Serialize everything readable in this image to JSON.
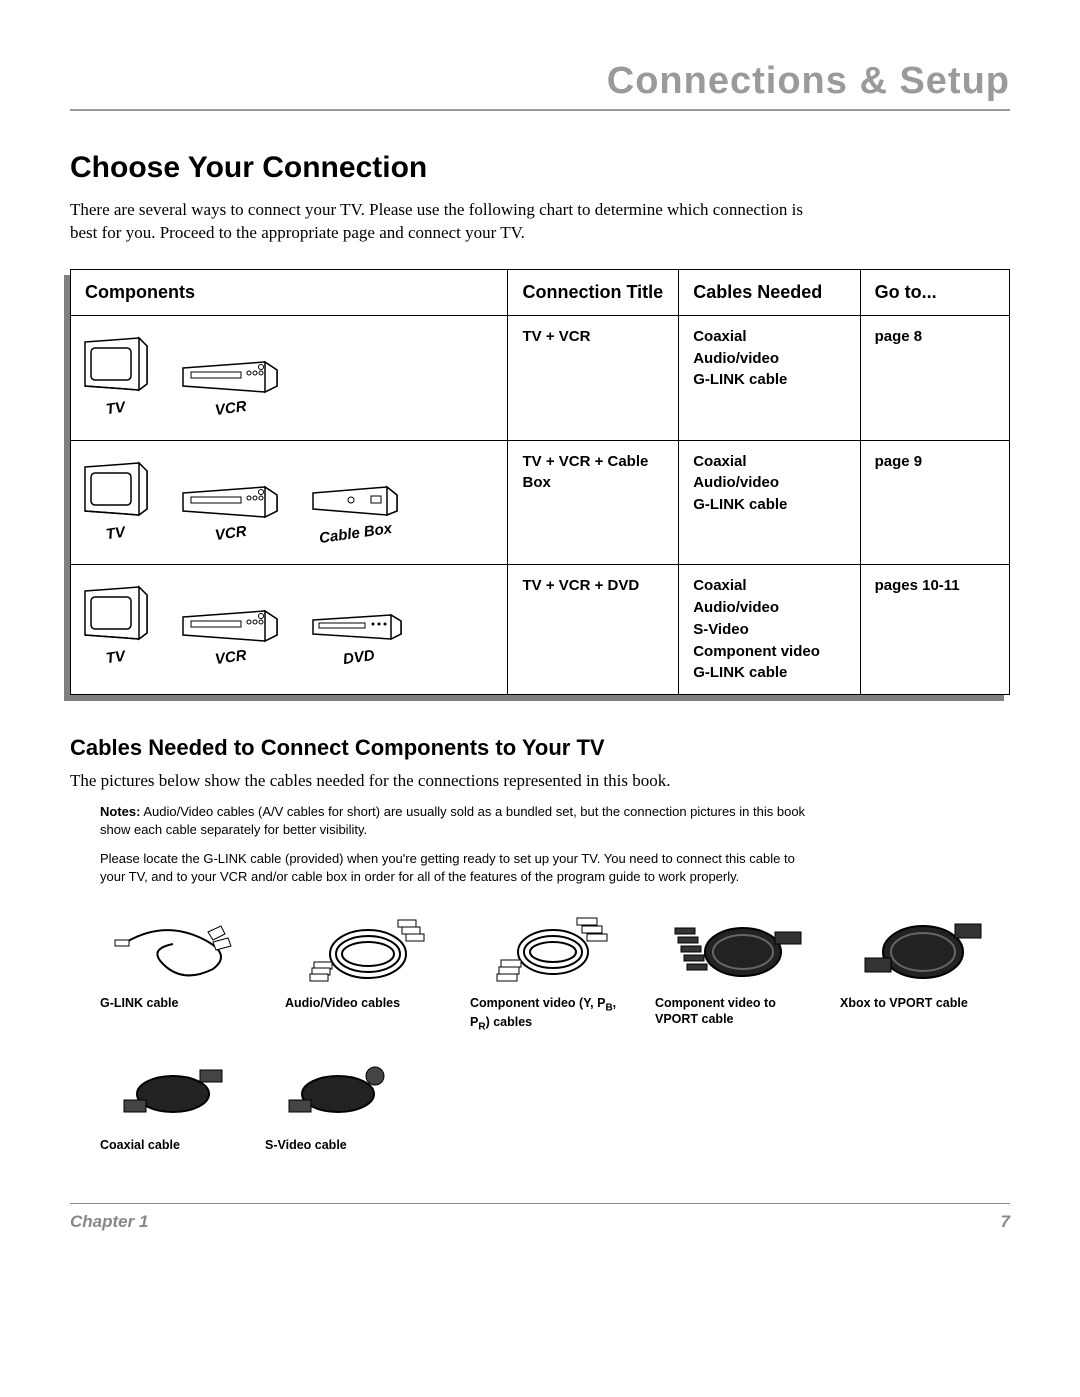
{
  "header": {
    "title": "Connections & Setup"
  },
  "section": {
    "title": "Choose Your Connection",
    "intro": "There are several ways to connect your TV. Please use the following chart to determine which connection is best for you. Proceed to the appropriate page and connect your TV."
  },
  "table": {
    "headers": {
      "components": "Components",
      "connection": "Connection Title",
      "cables": "Cables Needed",
      "goto": "Go to..."
    },
    "rows": [
      {
        "components": [
          {
            "label": "TV",
            "type": "tv"
          },
          {
            "label": "VCR",
            "type": "vcr"
          }
        ],
        "connection": "TV + VCR",
        "cables": "Coaxial\nAudio/video\nG-LINK cable",
        "goto": "page 8"
      },
      {
        "components": [
          {
            "label": "TV",
            "type": "tv"
          },
          {
            "label": "VCR",
            "type": "vcr"
          },
          {
            "label": "Cable Box",
            "type": "cablebox"
          }
        ],
        "connection": "TV + VCR + Cable Box",
        "cables": "Coaxial\nAudio/video\nG-LINK cable",
        "goto": "page 9"
      },
      {
        "components": [
          {
            "label": "TV",
            "type": "tv"
          },
          {
            "label": "VCR",
            "type": "vcr"
          },
          {
            "label": "DVD",
            "type": "dvd"
          }
        ],
        "connection": "TV + VCR + DVD",
        "cables": "Coaxial\nAudio/video\nS-Video\nComponent video\nG-LINK cable",
        "goto": "pages 10-11"
      }
    ]
  },
  "cables_section": {
    "heading": "Cables Needed to Connect Components to Your TV",
    "intro": "The pictures below show the cables needed for the connections represented in this book.",
    "notes_label": "Notes:",
    "note1": " Audio/Video cables (A/V cables for short) are usually sold as a bundled set, but the connection pictures in this book show each cable separately for better visibility.",
    "note2": "Please locate the G-LINK cable (provided) when you're getting ready to set up your TV. You need to connect this cable to your TV, and to your VCR and/or cable box in order for all of the features of the program guide to work properly.",
    "items": [
      {
        "caption": "G-LINK cable",
        "type": "glink"
      },
      {
        "caption": "Audio/Video cables",
        "type": "av"
      },
      {
        "caption_html": "Component video (Y, P<sub>B</sub>, P<sub>R</sub>) cables",
        "type": "component"
      },
      {
        "caption": "Component video to VPORT cable",
        "type": "vport"
      },
      {
        "caption": "Xbox to VPORT cable",
        "type": "xbox"
      },
      {
        "caption": "Coaxial cable",
        "type": "coax"
      },
      {
        "caption": "S-Video cable",
        "type": "svideo"
      }
    ]
  },
  "footer": {
    "chapter": "Chapter 1",
    "page": "7"
  }
}
